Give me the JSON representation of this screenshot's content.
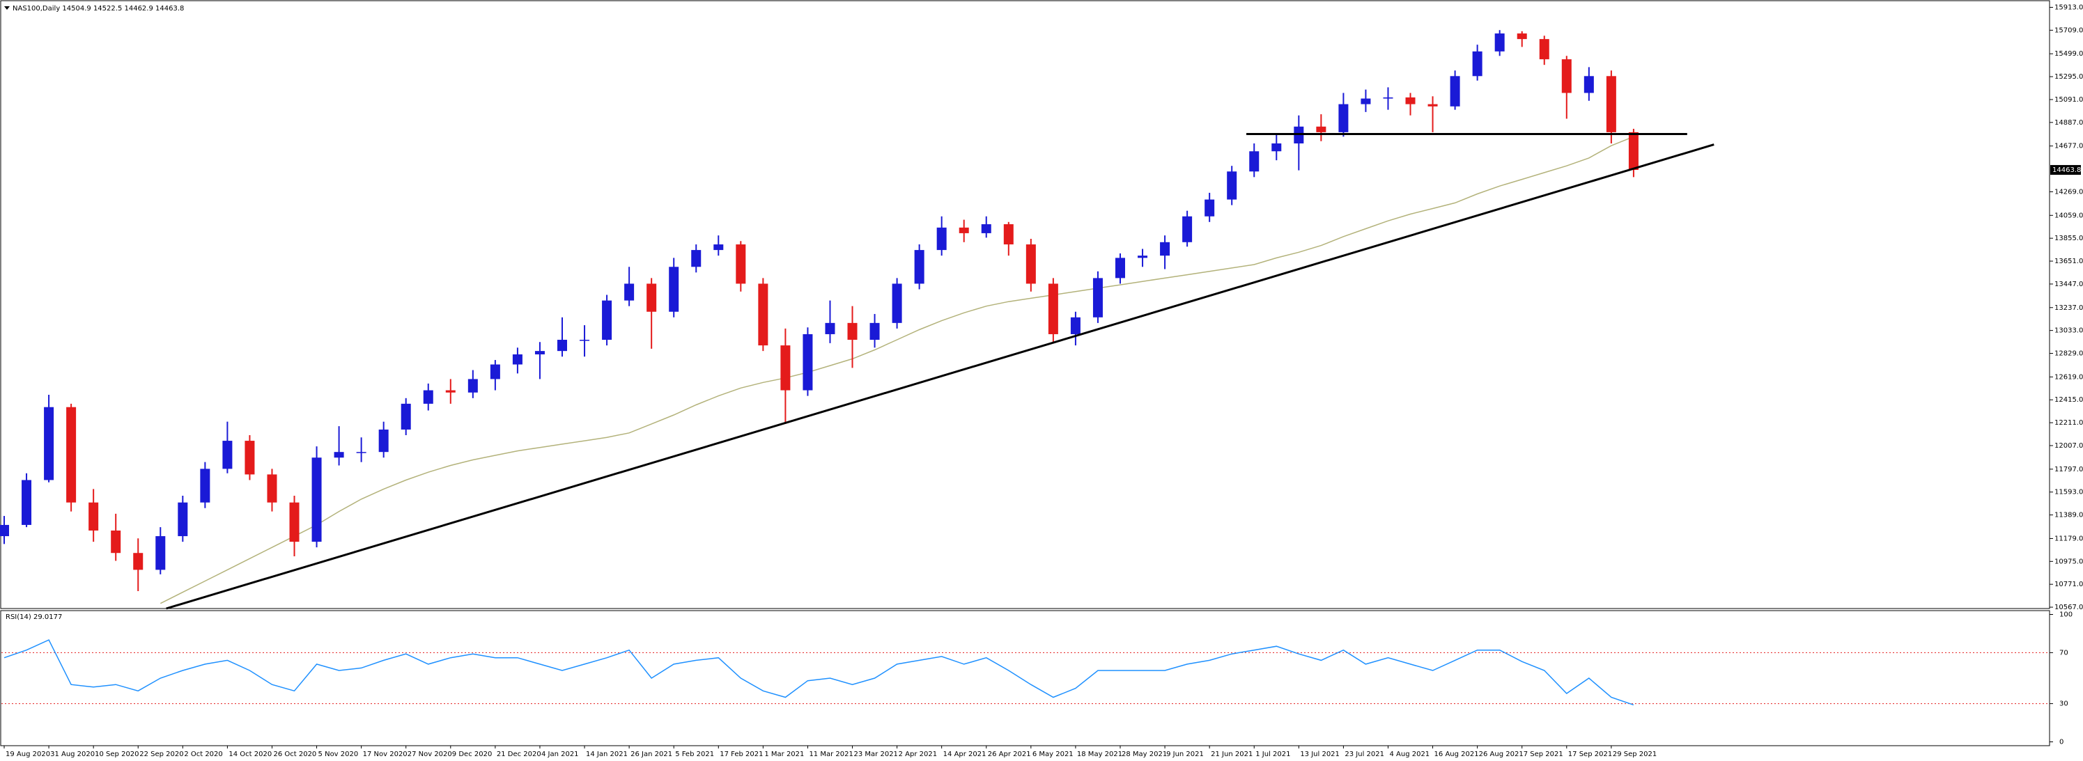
{
  "chart_data": {
    "type": "candlestick",
    "header": "NAS100,Daily  14504.9 14522.5 14462.9 14463.8",
    "categories": [
      "19 Aug 2020",
      null,
      "31 Aug 2020",
      null,
      "10 Sep 2020",
      null,
      "22 Sep 2020",
      null,
      "2 Oct 2020",
      null,
      "14 Oct 2020",
      null,
      "26 Oct 2020",
      null,
      "5 Nov 2020",
      null,
      "17 Nov 2020",
      null,
      "27 Nov 2020",
      null,
      "9 Dec 2020",
      null,
      "21 Dec 2020",
      null,
      "4 Jan 2021",
      null,
      "14 Jan 2021",
      null,
      "26 Jan 2021",
      null,
      "5 Feb 2021",
      null,
      "17 Feb 2021",
      null,
      "1 Mar 2021",
      null,
      "11 Mar 2021",
      null,
      "23 Mar 2021",
      null,
      "2 Apr 2021",
      null,
      "14 Apr 2021",
      null,
      "26 Apr 2021",
      null,
      "6 May 2021",
      null,
      "18 May 2021",
      null,
      "28 May 2021",
      null,
      "9 Jun 2021",
      null,
      "21 Jun 2021",
      null,
      "1 Jul 2021",
      null,
      "13 Jul 2021",
      null,
      "23 Jul 2021",
      null,
      "4 Aug 2021",
      null,
      "16 Aug 2021",
      null,
      "26 Aug 2021",
      null,
      "7 Sep 2021",
      null,
      "17 Sep 2021",
      null,
      "29 Sep 2021",
      null
    ],
    "candles": [
      [
        11200,
        11380,
        11130,
        11300
      ],
      [
        11300,
        11760,
        11280,
        11700
      ],
      [
        11700,
        12460,
        11680,
        12350
      ],
      [
        12350,
        12380,
        11420,
        11500
      ],
      [
        11500,
        11620,
        11150,
        11250
      ],
      [
        11250,
        11400,
        10980,
        11050
      ],
      [
        11050,
        11180,
        10710,
        10900
      ],
      [
        10900,
        11280,
        10860,
        11200
      ],
      [
        11200,
        11560,
        11150,
        11500
      ],
      [
        11500,
        11860,
        11450,
        11800
      ],
      [
        11800,
        12220,
        11760,
        12050
      ],
      [
        12050,
        12100,
        11700,
        11750
      ],
      [
        11750,
        11800,
        11420,
        11500
      ],
      [
        11500,
        11560,
        11020,
        11150
      ],
      [
        11150,
        12000,
        11100,
        11900
      ],
      [
        11900,
        12180,
        11830,
        11950
      ],
      [
        11950,
        12080,
        11860,
        11950
      ],
      [
        11950,
        12220,
        11900,
        12150
      ],
      [
        12150,
        12430,
        12100,
        12380
      ],
      [
        12380,
        12560,
        12320,
        12500
      ],
      [
        12500,
        12600,
        12380,
        12480
      ],
      [
        12480,
        12680,
        12430,
        12600
      ],
      [
        12600,
        12770,
        12500,
        12730
      ],
      [
        12730,
        12880,
        12650,
        12820
      ],
      [
        12820,
        12930,
        12600,
        12850
      ],
      [
        12850,
        13150,
        12800,
        12950
      ],
      [
        12950,
        13080,
        12800,
        12950
      ],
      [
        12950,
        13350,
        12900,
        13300
      ],
      [
        13300,
        13600,
        13250,
        13450
      ],
      [
        13450,
        13500,
        12870,
        13200
      ],
      [
        13200,
        13680,
        13150,
        13600
      ],
      [
        13600,
        13800,
        13550,
        13750
      ],
      [
        13750,
        13880,
        13700,
        13800
      ],
      [
        13800,
        13830,
        13380,
        13450
      ],
      [
        13450,
        13500,
        12850,
        12900
      ],
      [
        12900,
        13050,
        12200,
        12500
      ],
      [
        12500,
        13060,
        12450,
        13000
      ],
      [
        13000,
        13300,
        12920,
        13100
      ],
      [
        13100,
        13250,
        12700,
        12950
      ],
      [
        12950,
        13180,
        12880,
        13100
      ],
      [
        13100,
        13500,
        13050,
        13450
      ],
      [
        13450,
        13800,
        13400,
        13750
      ],
      [
        13750,
        14050,
        13700,
        13950
      ],
      [
        13950,
        14020,
        13820,
        13900
      ],
      [
        13900,
        14050,
        13860,
        13980
      ],
      [
        13980,
        14000,
        13700,
        13800
      ],
      [
        13800,
        13850,
        13380,
        13450
      ],
      [
        13450,
        13500,
        12930,
        13000
      ],
      [
        13000,
        13200,
        12900,
        13150
      ],
      [
        13150,
        13560,
        13100,
        13500
      ],
      [
        13500,
        13720,
        13450,
        13680
      ],
      [
        13680,
        13760,
        13600,
        13700
      ],
      [
        13700,
        13880,
        13580,
        13820
      ],
      [
        13820,
        14100,
        13780,
        14050
      ],
      [
        14050,
        14260,
        14000,
        14200
      ],
      [
        14200,
        14500,
        14150,
        14450
      ],
      [
        14450,
        14700,
        14400,
        14630
      ],
      [
        14630,
        14790,
        14550,
        14700
      ],
      [
        14700,
        14950,
        14460,
        14850
      ],
      [
        14850,
        14960,
        14720,
        14800
      ],
      [
        14800,
        15150,
        14760,
        15050
      ],
      [
        15050,
        15180,
        14980,
        15100
      ],
      [
        15100,
        15200,
        15000,
        15110
      ],
      [
        15110,
        15150,
        14950,
        15050
      ],
      [
        15050,
        15120,
        14800,
        15030
      ],
      [
        15030,
        15350,
        15000,
        15300
      ],
      [
        15300,
        15580,
        15260,
        15520
      ],
      [
        15520,
        15710,
        15480,
        15680
      ],
      [
        15680,
        15700,
        15560,
        15630
      ],
      [
        15630,
        15660,
        15400,
        15450
      ],
      [
        15450,
        15480,
        14920,
        15150
      ],
      [
        15150,
        15380,
        15080,
        15300
      ],
      [
        15300,
        15350,
        14700,
        14800
      ],
      [
        14800,
        14830,
        14400,
        14464
      ]
    ],
    "bull_color": "#1a1ad6",
    "bear_color": "#e41b1b",
    "ma": {
      "color": "#b3b27a",
      "values": [
        null,
        null,
        null,
        null,
        null,
        null,
        null,
        10600,
        10700,
        10800,
        10900,
        11000,
        11100,
        11200,
        11300,
        11420,
        11530,
        11620,
        11700,
        11770,
        11830,
        11880,
        11920,
        11960,
        11990,
        12020,
        12050,
        12080,
        12120,
        12200,
        12280,
        12370,
        12450,
        12520,
        12570,
        12610,
        12660,
        12720,
        12780,
        12860,
        12950,
        13040,
        13120,
        13190,
        13250,
        13290,
        13320,
        13350,
        13380,
        13410,
        13440,
        13470,
        13500,
        13530,
        13560,
        13590,
        13620,
        13680,
        13730,
        13790,
        13870,
        13940,
        14010,
        14070,
        14120,
        14170,
        14250,
        14320,
        14380,
        14440,
        14500,
        14570,
        14680,
        14760
      ]
    },
    "trendlines": [
      {
        "color": "#000000",
        "x": [
          7.26,
          76.6
        ],
        "y": [
          10555,
          14690
        ]
      },
      {
        "color": "#000000",
        "x": [
          55.65,
          75.4
        ],
        "y": [
          14784,
          14784
        ]
      }
    ],
    "ylim": [
      10555,
      15972
    ],
    "yticks": [
      {
        "value": 15913,
        "label": "15913.0"
      },
      {
        "value": 15709,
        "label": "15709.0"
      },
      {
        "value": 15499,
        "label": "15499.0"
      },
      {
        "value": 15295,
        "label": "15295.0"
      },
      {
        "value": 15091,
        "label": "15091.0"
      },
      {
        "value": 14887,
        "label": "14887.0"
      },
      {
        "value": 14677,
        "label": "14677.0"
      },
      {
        "value": 14269,
        "label": "14269.0"
      },
      {
        "value": 14059,
        "label": "14059.0"
      },
      {
        "value": 13855,
        "label": "13855.0"
      },
      {
        "value": 13651,
        "label": "13651.0"
      },
      {
        "value": 13447,
        "label": "13447.0"
      },
      {
        "value": 13237,
        "label": "13237.0"
      },
      {
        "value": 13033,
        "label": "13033.0"
      },
      {
        "value": 12829,
        "label": "12829.0"
      },
      {
        "value": 12619,
        "label": "12619.0"
      },
      {
        "value": 12415,
        "label": "12415.0"
      },
      {
        "value": 12211,
        "label": "12211.0"
      },
      {
        "value": 12007,
        "label": "12007.0"
      },
      {
        "value": 11797,
        "label": "11797.0"
      },
      {
        "value": 11593,
        "label": "11593.0"
      },
      {
        "value": 11389,
        "label": "11389.0"
      },
      {
        "value": 11179,
        "label": "11179.0"
      },
      {
        "value": 10975,
        "label": "10975.0"
      },
      {
        "value": 10771,
        "label": "10771.0"
      },
      {
        "value": 10567,
        "label": "10567.0"
      }
    ],
    "last_price": 14463.8,
    "rsi": {
      "label": "RSI(14) 29.0177",
      "color": "#1e90ff",
      "level_color": "#e41b1b",
      "values": [
        66,
        72,
        80,
        45,
        43,
        45,
        40,
        50,
        56,
        61,
        64,
        56,
        45,
        40,
        61,
        56,
        58,
        64,
        69,
        61,
        66,
        69,
        66,
        66,
        61,
        56,
        61,
        66,
        72,
        50,
        61,
        64,
        66,
        50,
        40,
        35,
        48,
        50,
        45,
        50,
        61,
        64,
        67,
        61,
        66,
        56,
        45,
        35,
        42,
        56,
        56,
        56,
        56,
        61,
        64,
        69,
        72,
        75,
        69,
        64,
        72,
        61,
        66,
        61,
        56,
        64,
        72,
        72,
        63,
        56,
        38,
        50,
        35,
        29
      ],
      "ylim": [
        -3,
        103
      ],
      "yticks": [
        100,
        70,
        30,
        0
      ],
      "levels": [
        70,
        30
      ]
    }
  }
}
